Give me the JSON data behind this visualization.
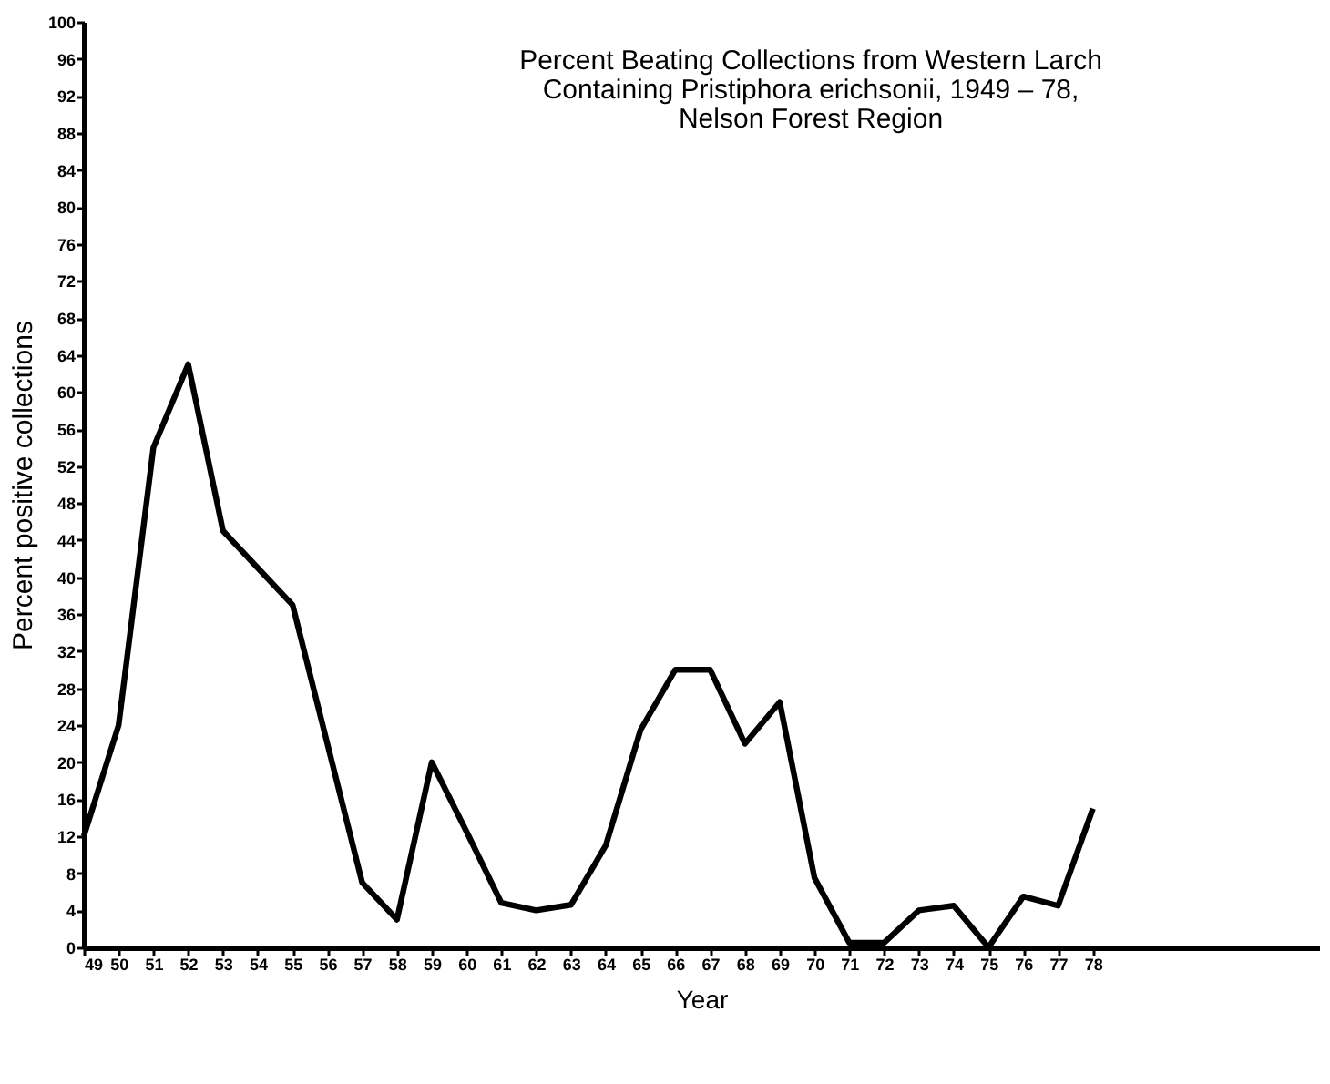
{
  "chart_data": {
    "type": "line",
    "title": "Percent Beating Collections from Western Larch\nContaining Pristiphora erichsonii, 1949 – 78,\nNelson Forest Region",
    "xlabel": "Year",
    "ylabel": "Percent positive collections",
    "x": [
      49,
      50,
      51,
      52,
      53,
      54,
      55,
      56,
      57,
      58,
      59,
      60,
      61,
      62,
      63,
      64,
      65,
      66,
      67,
      68,
      69,
      70,
      71,
      72,
      73,
      74,
      75,
      76,
      77,
      78
    ],
    "series": [
      {
        "color": "#000000",
        "values": [
          12,
          24,
          54,
          63,
          45,
          41,
          37,
          22,
          7,
          3,
          20,
          12.5,
          4.8,
          4,
          4.6,
          11,
          23.5,
          30,
          30,
          22,
          26.5,
          7.5,
          0.5,
          0.5,
          4,
          4.5,
          0,
          5.5,
          4.5,
          15
        ]
      }
    ],
    "xlim": [
      49,
      84.5
    ],
    "xticks": [
      49,
      50,
      51,
      52,
      53,
      54,
      55,
      56,
      57,
      58,
      59,
      60,
      61,
      62,
      63,
      64,
      65,
      66,
      67,
      68,
      69,
      70,
      71,
      72,
      73,
      74,
      75,
      76,
      77,
      78
    ],
    "ylim": [
      0,
      100
    ],
    "yticks": [
      0,
      4,
      8,
      12,
      16,
      20,
      24,
      28,
      32,
      36,
      40,
      44,
      48,
      52,
      56,
      60,
      64,
      68,
      72,
      76,
      80,
      84,
      88,
      92,
      96,
      100
    ],
    "grid": false,
    "marker": "none",
    "line_style": "solid"
  }
}
